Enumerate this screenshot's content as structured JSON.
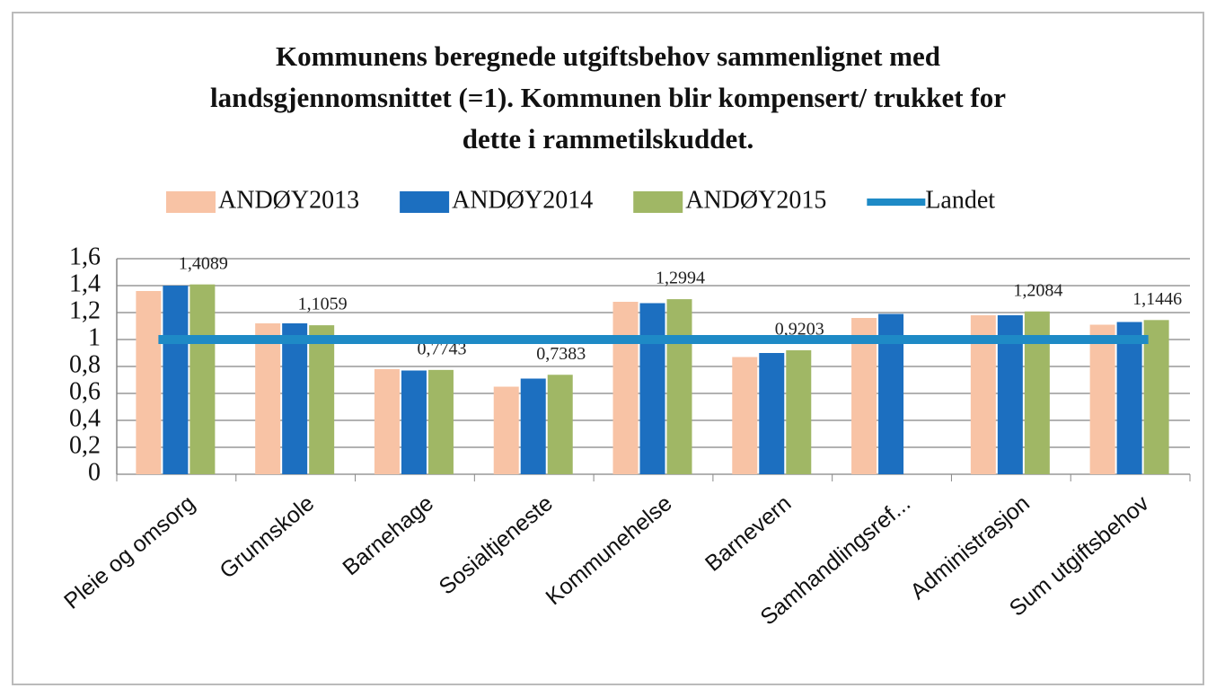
{
  "chart_data": {
    "type": "bar",
    "title": [
      "Kommunens beregnede utgiftsbehov sammenlignet med",
      "landsgjennomsnittet (=1). Kommunen blir kompensert/ trukket for",
      "dette i rammetilskuddet."
    ],
    "categories": [
      "Pleie og omsorg",
      "Grunnskole",
      "Barnehage",
      "Sosialtjeneste",
      "Kommunehelse",
      "Barnevern",
      "Samhandlingsref...",
      "Administrasjon",
      "Sum utgiftsbehov"
    ],
    "series": [
      {
        "name": "ANDØY2013",
        "color": "#f8c3a5",
        "values": [
          1.36,
          1.12,
          0.78,
          0.65,
          1.28,
          0.87,
          1.16,
          1.18,
          1.11
        ]
      },
      {
        "name": "ANDØY2014",
        "color": "#1c6fc0",
        "values": [
          1.4,
          1.12,
          0.77,
          0.71,
          1.27,
          0.9,
          1.19,
          1.18,
          1.13
        ]
      },
      {
        "name": "ANDØY2015",
        "color": "#a0b765",
        "values": [
          1.4089,
          1.1059,
          0.7743,
          0.7383,
          1.2994,
          0.9203,
          null,
          1.2084,
          1.1446
        ],
        "value_labels": [
          "1,4089",
          "1,1059",
          "0,7743",
          "0,7383",
          "1,2994",
          "0,9203",
          null,
          "1,2084",
          "1,1446"
        ]
      },
      {
        "name": "Landet",
        "type": "line",
        "color": "#1e8ac6",
        "values": [
          1,
          1,
          1,
          1,
          1,
          1,
          1,
          1,
          1
        ]
      }
    ],
    "ylim": [
      0,
      1.6
    ],
    "yticks": [
      0,
      {
        "value": 0.2,
        "label": "0,2"
      },
      {
        "value": 0.4,
        "label": "0,4"
      },
      {
        "value": 0.6,
        "label": "0,6"
      },
      {
        "value": 0.8,
        "label": "0,8"
      },
      1,
      {
        "value": 1.2,
        "label": "1,2"
      },
      {
        "value": 1.4,
        "label": "1,4"
      },
      {
        "value": 1.6,
        "label": "1,6"
      }
    ],
    "grid": true,
    "legend": "top"
  }
}
